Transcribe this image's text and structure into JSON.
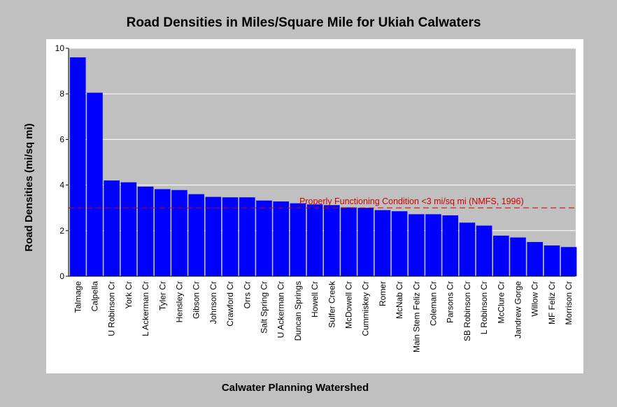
{
  "chart_data": {
    "type": "bar",
    "title": "Road Densities in Miles/Square Mile for Ukiah Calwaters",
    "xlabel": "Calwater Planning Watershed",
    "ylabel": "Road Densities (mi/sq mi)",
    "ylim": [
      0,
      10
    ],
    "yticks": [
      "0",
      "2",
      "4",
      "6",
      "8",
      "10"
    ],
    "grid": true,
    "categories": [
      "Talmage",
      "Calpella",
      "U Robinson Cr",
      "York Cr",
      "L Ackerman Cr",
      "Tyler Cr",
      "Hensley Cr",
      "Gibson Cr",
      "Johnson Cr",
      "Crawford Cr",
      "Orrs Cr",
      "Salt Spring Cr",
      "U Ackerman Cr",
      "Duncan Springs",
      "Howell Cr",
      "Sulfer Creek",
      "McDowell Cr",
      "Cummiskey Cr",
      "Romer",
      "McNab Cr",
      "Main Stem Feliz Cr",
      "Coleman Cr",
      "Parsons Cr",
      "SB Robinson Cr",
      "L Robinson Cr",
      "McClure Cr",
      "Jandrew Gorge",
      "Willow Cr",
      "MF Feliz Cr",
      "Morrison Cr"
    ],
    "values": [
      9.6,
      8.05,
      4.2,
      4.12,
      3.93,
      3.82,
      3.78,
      3.6,
      3.48,
      3.46,
      3.46,
      3.32,
      3.28,
      3.2,
      3.15,
      3.12,
      3.02,
      3.0,
      2.9,
      2.85,
      2.72,
      2.72,
      2.67,
      2.35,
      2.22,
      1.78,
      1.7,
      1.5,
      1.35,
      1.28
    ],
    "bar_color": "#0000ff",
    "reference_line": {
      "value": 3,
      "label": "Properly Functioning Condition <3 mi/sq mi (NMFS, 1996)",
      "color": "#cc0000",
      "style": "dashed"
    }
  }
}
